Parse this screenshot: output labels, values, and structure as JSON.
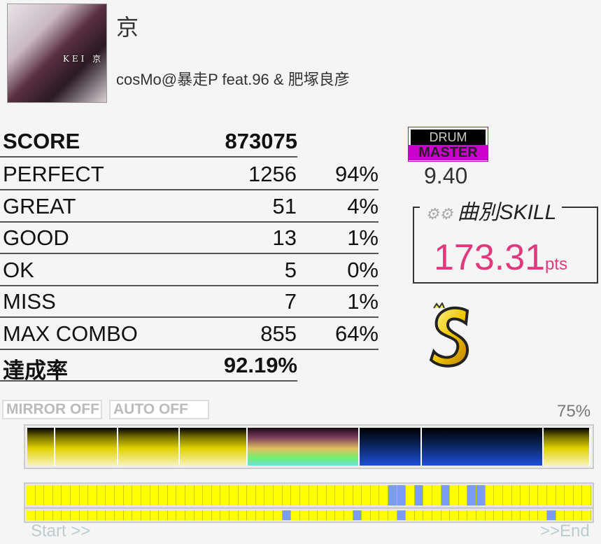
{
  "song": {
    "title": "京",
    "artist": "cosMo@暴走P feat.96 & 肥塚良彦",
    "jacket_text": "KEI 京"
  },
  "results": {
    "score": {
      "label": "SCORE",
      "value": "873075"
    },
    "rows": [
      {
        "label": "PERFECT",
        "value": "1256",
        "pct": "94%"
      },
      {
        "label": "GREAT",
        "value": "51",
        "pct": "4%"
      },
      {
        "label": "GOOD",
        "value": "13",
        "pct": "1%"
      },
      {
        "label": "OK",
        "value": "5",
        "pct": "0%"
      },
      {
        "label": "MISS",
        "value": "7",
        "pct": "1%"
      },
      {
        "label": "MAX COMBO",
        "value": "855",
        "pct": "64%"
      }
    ],
    "achievement": {
      "label": "達成率",
      "value": "92.19%"
    }
  },
  "difficulty": {
    "part": "DRUM",
    "level_name": "MASTER",
    "level": "9.40",
    "color": "#cc00cc"
  },
  "skill": {
    "label": "曲別SKILL",
    "value": "173.31",
    "unit": "pts",
    "color": "#e03a7f"
  },
  "rank": {
    "grade": "S",
    "icon": "rank-s-icon"
  },
  "options": {
    "mirror": "MIRROR OFF",
    "auto": "AUTO OFF"
  },
  "progress": {
    "percent_label": "75%",
    "start": "Start >>",
    "end": ">>End"
  },
  "gauge_segments": [
    "yellow",
    "yellow",
    "yellow",
    "yellow",
    "rainbow",
    "blue",
    "blue",
    "yellow"
  ],
  "timeline": {
    "cells": 64,
    "top_blue": [
      41,
      42,
      44,
      47,
      50,
      51
    ],
    "bottom_blue": [
      29,
      37,
      42,
      59
    ]
  }
}
